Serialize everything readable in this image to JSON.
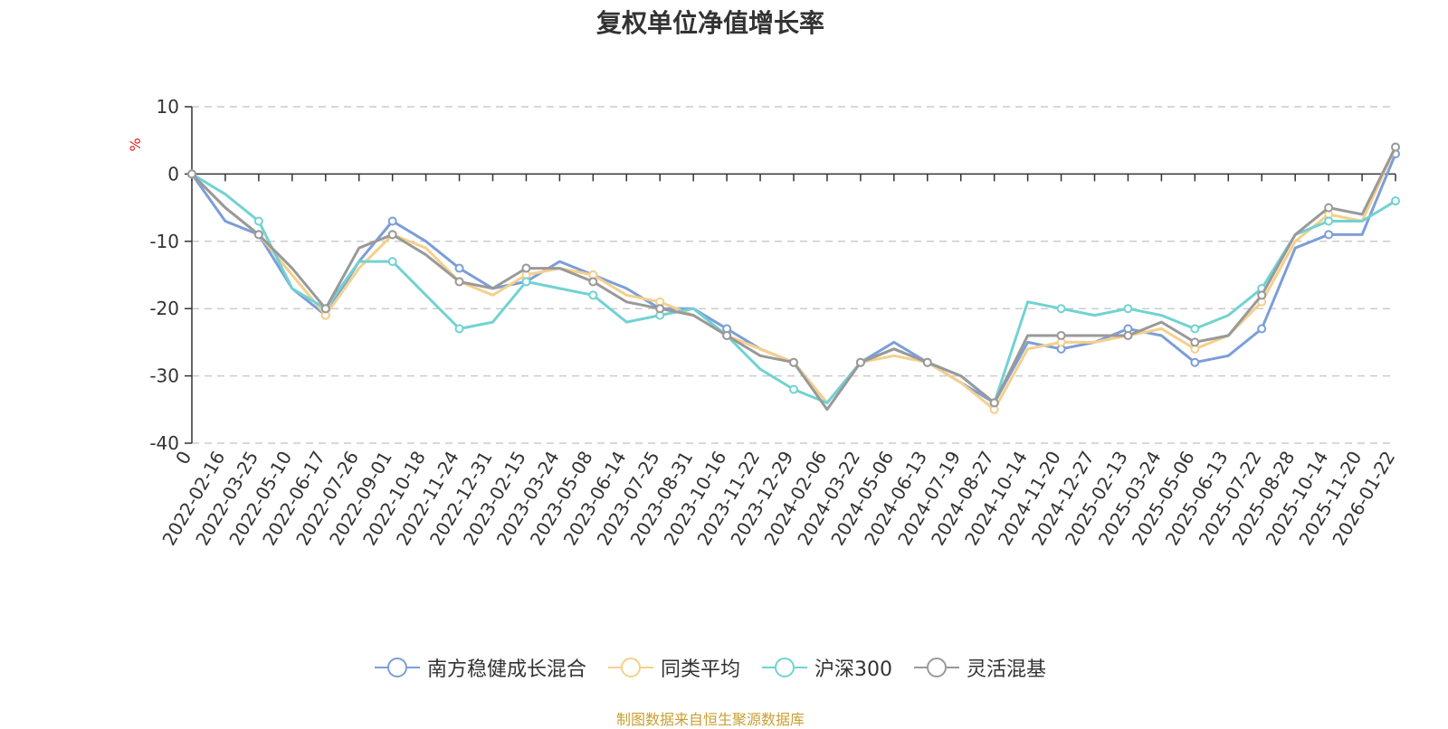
{
  "chart_data": {
    "type": "line",
    "title": "复权单位净值增长率",
    "ylabel": "%",
    "ylim": [
      -40,
      10
    ],
    "yticks": [
      10,
      0,
      -10,
      -20,
      -30,
      -40
    ],
    "grid": true,
    "legend_position": "bottom",
    "x_tick_labels": [
      "0",
      "2022-02-16",
      "2022-03-25",
      "2022-05-10",
      "2022-06-17",
      "2022-07-26",
      "2022-09-01",
      "2022-10-18",
      "2022-11-24",
      "2022-12-31",
      "2023-02-15",
      "2023-03-24",
      "2023-05-08",
      "2023-06-14",
      "2023-07-25",
      "2023-08-31",
      "2023-10-16",
      "2023-11-22",
      "2023-12-29",
      "2024-02-06",
      "2024-03-22",
      "2024-05-06",
      "2024-06-13",
      "2024-07-19",
      "2024-08-27",
      "2024-10-14",
      "2024-11-20",
      "2024-12-27",
      "2025-02-13",
      "2025-03-24",
      "2025-05-06",
      "2025-06-13",
      "2025-07-22",
      "2025-08-28",
      "2025-10-14",
      "2025-11-20",
      "2026-01-22"
    ],
    "series": [
      {
        "name": "南方稳健成长混合",
        "color": "#7b9ed8",
        "values": [
          0,
          -7,
          -9,
          -17,
          -21,
          -13,
          -7,
          -10,
          -14,
          -17,
          -16,
          -13,
          -15,
          -17,
          -20,
          -20,
          -23,
          -26,
          -28,
          -34,
          -28,
          -25,
          -28,
          -31,
          -34,
          -25,
          -26,
          -25,
          -23,
          -24,
          -28,
          -27,
          -23,
          -11,
          -9,
          -9,
          3
        ]
      },
      {
        "name": "同类平均",
        "color": "#f5d08b",
        "values": [
          0,
          -5,
          -9,
          -15,
          -21,
          -14,
          -9,
          -11,
          -16,
          -18,
          -15,
          -14,
          -15,
          -18,
          -19,
          -21,
          -24,
          -26,
          -28,
          -34,
          -28,
          -27,
          -28,
          -31,
          -35,
          -26,
          -25,
          -25,
          -24,
          -23,
          -26,
          -24,
          -19,
          -10,
          -6,
          -7,
          4
        ]
      },
      {
        "name": "沪深300",
        "color": "#72d2d2",
        "values": [
          0,
          -3,
          -7,
          -17,
          -20,
          -13,
          -13,
          -18,
          -23,
          -22,
          -16,
          -17,
          -18,
          -22,
          -21,
          -20,
          -24,
          -29,
          -32,
          -34,
          -28,
          -26,
          -28,
          -30,
          -34,
          -19,
          -20,
          -21,
          -20,
          -21,
          -23,
          -21,
          -17,
          -9,
          -7,
          -7,
          -4
        ]
      },
      {
        "name": "灵活混基",
        "color": "#999999",
        "values": [
          0,
          -5,
          -9,
          -14,
          -20,
          -11,
          -9,
          -12,
          -16,
          -17,
          -14,
          -14,
          -16,
          -19,
          -20,
          -21,
          -24,
          -27,
          -28,
          -35,
          -28,
          -26,
          -28,
          -30,
          -34,
          -24,
          -24,
          -24,
          -24,
          -22,
          -25,
          -24,
          -18,
          -9,
          -5,
          -6,
          4
        ]
      }
    ]
  },
  "source_note": "制图数据来自恒生聚源数据库"
}
